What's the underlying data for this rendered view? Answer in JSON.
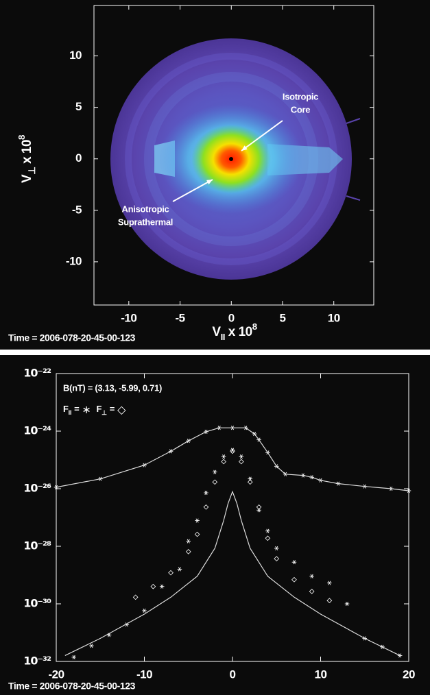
{
  "chart_data": [
    {
      "type": "distribution",
      "x_label": {
        "base": "V",
        "sub": "II",
        "mid": " x 10",
        "sup": "8"
      },
      "y_label": {
        "base": "V",
        "sub": "⊥",
        "mid": " x 10",
        "sup": "8"
      },
      "xlim": [
        -13.4,
        13.9
      ],
      "ylim": [
        -14.2,
        14.9
      ],
      "xticks": [
        -10,
        -5,
        0,
        5,
        10
      ],
      "yticks": [
        -10,
        -5,
        0,
        5,
        10
      ],
      "annotations": [
        {
          "lines": [
            "Isotropic",
            "Core"
          ]
        },
        {
          "lines": [
            "Anisotropic",
            "Suprathermal"
          ]
        }
      ],
      "footer": "Time = 2006-078-20-45-00-123"
    },
    {
      "type": "scatter",
      "log_y": true,
      "xlim": [
        -20,
        20
      ],
      "xticks": [
        -20,
        -10,
        0,
        10,
        20
      ],
      "ylim": [
        1e-32,
        1e-22
      ],
      "yticks": [
        {
          "value": 1e-22,
          "label": "10⁻²²"
        },
        {
          "value": 1e-24,
          "label": "10⁻²⁴"
        },
        {
          "value": 1e-26,
          "label": "10⁻²⁶"
        },
        {
          "value": 1e-28,
          "label": "10⁻²⁸"
        },
        {
          "value": 1e-30,
          "label": "10⁻³⁰"
        },
        {
          "value": 1e-32,
          "label": "10⁻³²"
        }
      ],
      "annotation": "B(nT) = (3.13, -5.99, 0.71)",
      "legend_equals": "=",
      "series": [
        {
          "name": "F",
          "name_sub": "II",
          "marker": "∗",
          "color": "#ffffff",
          "x": [
            -20,
            -15,
            -10,
            -7,
            -5,
            -3,
            -1.5,
            0,
            1.5,
            2.5,
            3,
            4,
            5,
            6,
            8,
            9,
            10,
            12,
            15,
            18,
            20,
            0,
            -1,
            1,
            -2,
            2,
            -3,
            3,
            -4,
            4,
            -5,
            5,
            -6,
            7,
            -8,
            9,
            11,
            13,
            -10,
            -12,
            -14,
            -16,
            -18,
            15,
            17,
            19
          ],
          "values": [
            1.12e-26,
            2.19e-26,
            6.6e-26,
            2e-25,
            4.6e-25,
            9.5e-25,
            1.3e-24,
            1.3e-24,
            1.3e-24,
            8e-25,
            5e-25,
            1.8e-25,
            6e-26,
            3.2e-26,
            2.9e-26,
            2.5e-26,
            1.95e-26,
            1.5e-26,
            1.2e-26,
            1e-26,
            8.5e-27,
            2.2e-25,
            1.3e-25,
            1.3e-25,
            3.8e-26,
            2.2e-26,
            7.2e-27,
            1.8e-27,
            7.8e-28,
            3.4e-28,
            1.5e-28,
            8.5e-29,
            1.6e-29,
            2.8e-29,
            4e-30,
            9.1e-30,
            5.3e-30,
            1e-30,
            5.8e-31,
            1.9e-31,
            8.3e-32,
            3.5e-32,
            1.4e-32,
            6.3e-32,
            3.2e-32,
            1.6e-32
          ]
        },
        {
          "name": "F",
          "name_sub": "⊥",
          "marker": "◇",
          "color": "#ffffff",
          "x": [
            0,
            -1,
            1,
            -2,
            2,
            -3,
            3,
            -4,
            4,
            -5,
            5,
            -7,
            7,
            -9,
            9,
            -11,
            11
          ],
          "values": [
            2e-25,
            8.7e-26,
            8.7e-26,
            1.7e-26,
            1.7e-26,
            2.3e-27,
            2.3e-27,
            2.6e-28,
            1.9e-28,
            6.5e-29,
            3.7e-29,
            1.2e-29,
            6.9e-30,
            4e-30,
            2.7e-30,
            1.7e-30,
            1.3e-30
          ]
        },
        {
          "style": "line",
          "color": "#dddddd",
          "x": [
            -20,
            -15,
            -10,
            -7,
            -5,
            -3,
            -1.5,
            0,
            1.5,
            2.5,
            3,
            4,
            5,
            6,
            8,
            9,
            10,
            12,
            15,
            18,
            20
          ],
          "values": [
            1.12e-26,
            2.19e-26,
            6.6e-26,
            2e-25,
            4.6e-25,
            9.5e-25,
            1.3e-24,
            1.3e-24,
            1.3e-24,
            8e-25,
            5e-25,
            1.8e-25,
            6e-26,
            3.2e-26,
            2.9e-26,
            2.5e-26,
            1.95e-26,
            1.5e-26,
            1.2e-26,
            1e-26,
            8.5e-27
          ]
        },
        {
          "style": "line",
          "color": "#dddddd",
          "x": [
            -19,
            -15,
            -10,
            -7,
            -4,
            -2,
            -1,
            -0.5,
            0,
            0.5,
            1,
            2,
            4,
            7,
            10,
            15,
            19
          ],
          "values": [
            1.6e-32,
            6.3e-32,
            4.4e-31,
            1.7e-30,
            9.1e-30,
            8.5e-29,
            7.8e-28,
            3.1e-27,
            7.9e-27,
            3.1e-27,
            7.8e-28,
            8.5e-29,
            9.1e-30,
            1.7e-30,
            4.4e-31,
            6.3e-32,
            1.6e-32
          ]
        }
      ],
      "footer": "Time = 2006-078-20-45-00-123"
    }
  ]
}
